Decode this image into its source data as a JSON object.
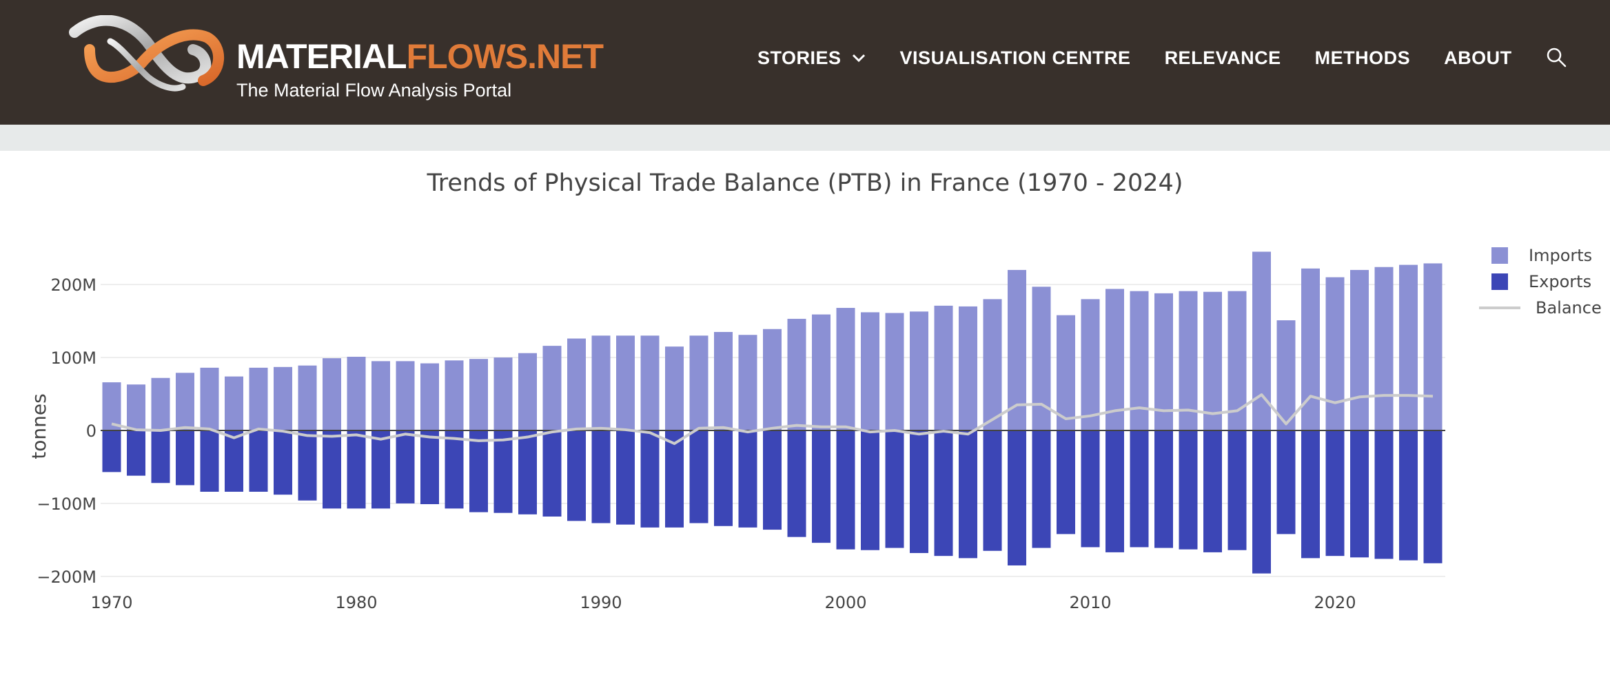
{
  "header": {
    "brand_part1": "MATERIAL",
    "brand_part2": "FLOWS.NET",
    "tagline": "The Material Flow Analysis Portal",
    "nav": [
      {
        "label": "STORIES",
        "icon": "chevron-down-icon"
      },
      {
        "label": "VISUALISATION CENTRE"
      },
      {
        "label": "RELEVANCE"
      },
      {
        "label": "METHODS"
      },
      {
        "label": "ABOUT"
      }
    ],
    "search_icon": "search-icon",
    "colors": {
      "background": "#38302b",
      "accent": "#e07b39",
      "text": "#ffffff"
    }
  },
  "chart_data": {
    "type": "bar",
    "title": "Trends of Physical Trade Balance (PTB) in France (1970 - 2024)",
    "xlabel": "",
    "ylabel": "tonnes",
    "ylim": [
      -200000000,
      250000000
    ],
    "yticks": [
      -200000000,
      -100000000,
      0,
      100000000,
      200000000
    ],
    "ytick_labels": [
      "−200M",
      "−100M",
      "0",
      "100M",
      "200M"
    ],
    "xticks": [
      1970,
      1980,
      1990,
      2000,
      2010,
      2020
    ],
    "xtick_labels": [
      "1970",
      "1980",
      "1990",
      "2000",
      "2010",
      "2020"
    ],
    "grid": true,
    "legend_position": "top-right",
    "x": [
      1970,
      1971,
      1972,
      1973,
      1974,
      1975,
      1976,
      1977,
      1978,
      1979,
      1980,
      1981,
      1982,
      1983,
      1984,
      1985,
      1986,
      1987,
      1988,
      1989,
      1990,
      1991,
      1992,
      1993,
      1994,
      1995,
      1996,
      1997,
      1998,
      1999,
      2000,
      2001,
      2002,
      2003,
      2004,
      2005,
      2006,
      2007,
      2008,
      2009,
      2010,
      2011,
      2012,
      2013,
      2014,
      2015,
      2016,
      2017,
      2018,
      2019,
      2020,
      2021,
      2022,
      2023,
      2024
    ],
    "series": [
      {
        "name": "Imports",
        "type": "bar",
        "color": "#8b90d4",
        "values": [
          66,
          63,
          72,
          79,
          86,
          74,
          86,
          87,
          89,
          99,
          101,
          95,
          95,
          92,
          96,
          98,
          100,
          106,
          116,
          126,
          130,
          130,
          130,
          115,
          130,
          135,
          131,
          139,
          153,
          159,
          168,
          162,
          161,
          163,
          171,
          170,
          180,
          220,
          197,
          158,
          180,
          194,
          191,
          188,
          191,
          190,
          191,
          245,
          151,
          222,
          210,
          220,
          224,
          227,
          229
        ]
      },
      {
        "name": "Exports",
        "type": "bar",
        "color": "#3c46b6",
        "values": [
          -57,
          -62,
          -72,
          -75,
          -84,
          -84,
          -84,
          -88,
          -96,
          -107,
          -107,
          -107,
          -100,
          -101,
          -107,
          -112,
          -113,
          -115,
          -118,
          -124,
          -127,
          -129,
          -133,
          -133,
          -127,
          -131,
          -133,
          -136,
          -146,
          -154,
          -163,
          -164,
          -161,
          -168,
          -172,
          -175,
          -165,
          -185,
          -161,
          -142,
          -160,
          -167,
          -160,
          -161,
          -163,
          -167,
          -164,
          -196,
          -142,
          -175,
          -172,
          -174,
          -176,
          -178,
          -182
        ]
      },
      {
        "name": "Balance",
        "type": "line",
        "color": "#cccccc",
        "values": [
          9,
          1,
          0,
          4,
          2,
          -10,
          2,
          -1,
          -7,
          -8,
          -6,
          -12,
          -5,
          -9,
          -11,
          -14,
          -13,
          -9,
          -2,
          2,
          3,
          1,
          -3,
          -18,
          3,
          4,
          -2,
          3,
          7,
          5,
          5,
          -2,
          0,
          -5,
          -1,
          -5,
          15,
          35,
          36,
          16,
          20,
          27,
          31,
          27,
          28,
          23,
          27,
          49,
          9,
          47,
          38,
          46,
          48,
          48,
          47
        ]
      }
    ]
  }
}
